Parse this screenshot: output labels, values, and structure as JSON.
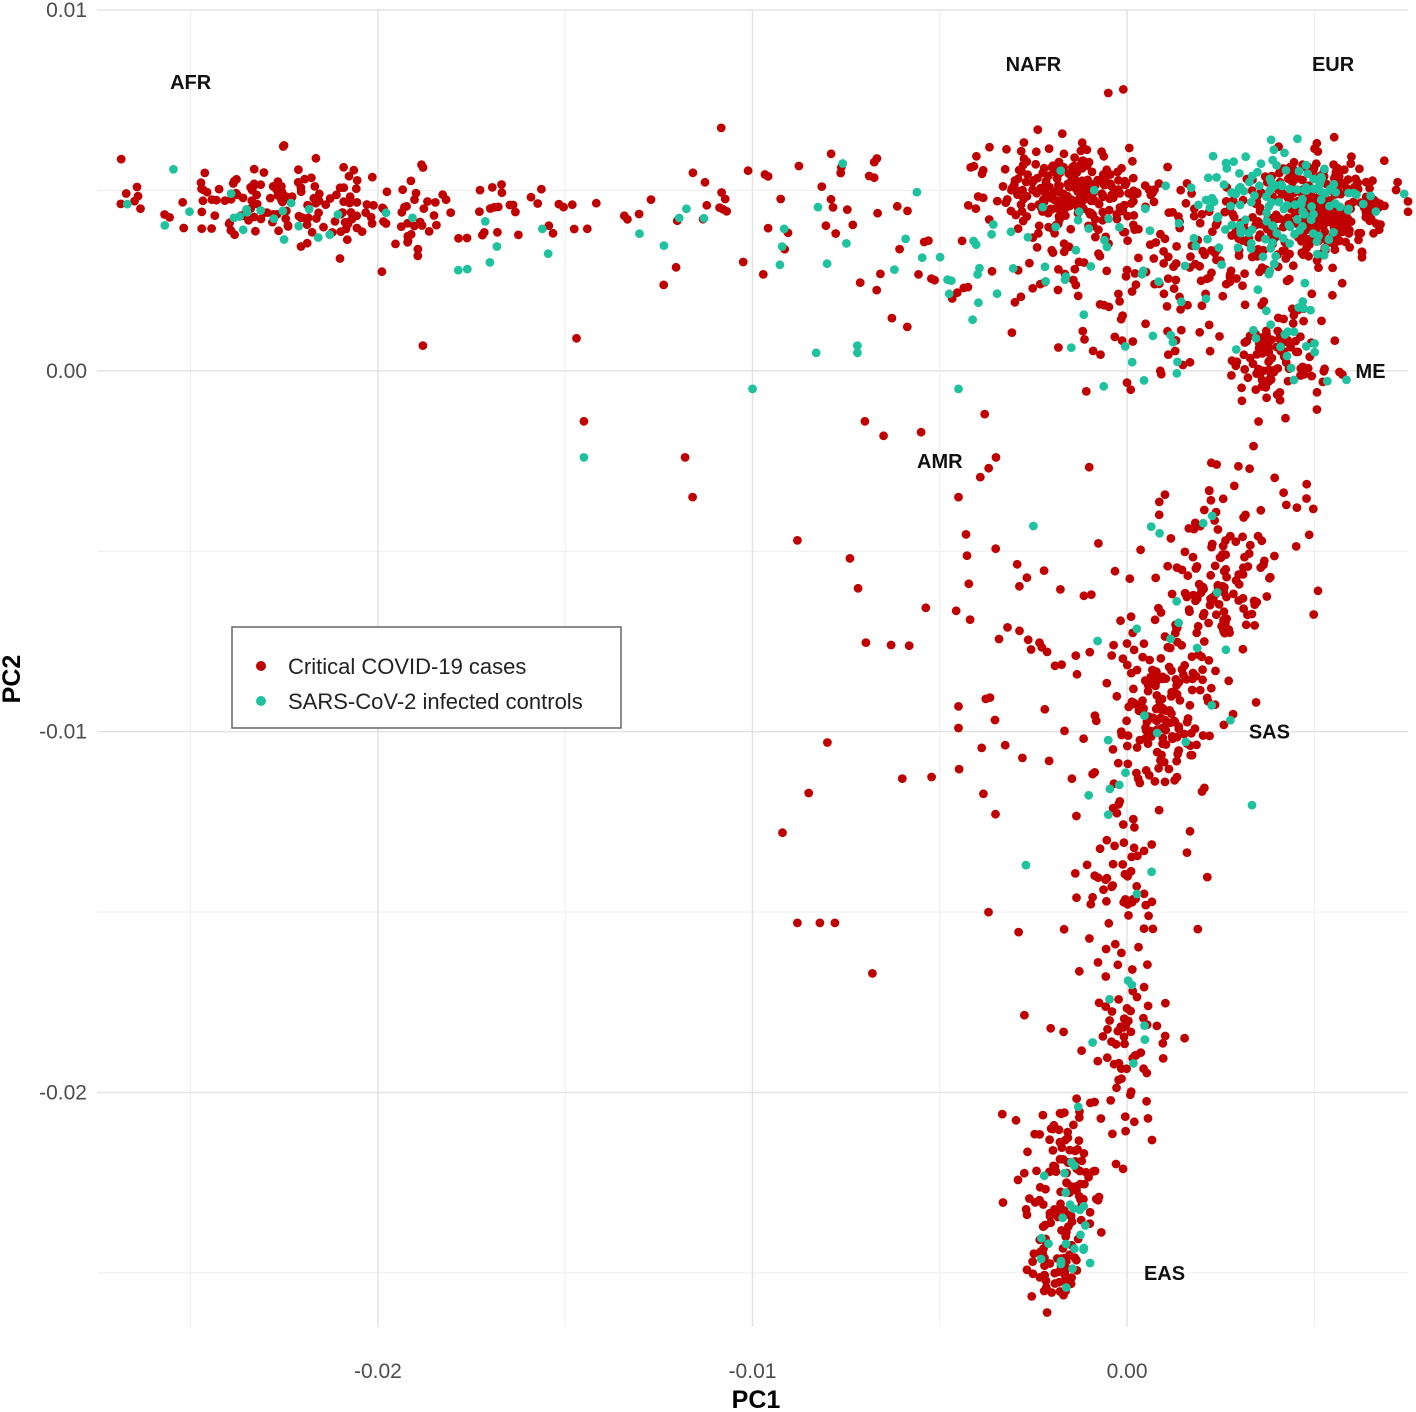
{
  "chart_data": {
    "type": "scatter",
    "title": "",
    "xlabel": "PC1",
    "ylabel": "PC2",
    "xlim": [
      -0.0275,
      0.0075
    ],
    "ylim": [
      -0.0265,
      0.01
    ],
    "x_ticks": [
      -0.02,
      -0.01,
      0.0
    ],
    "x_tick_labels": [
      "-0.02",
      "-0.01",
      "0.00"
    ],
    "y_ticks": [
      0.01,
      0.0,
      -0.01,
      -0.02
    ],
    "y_tick_labels": [
      "0.01",
      "0.00",
      "-0.01",
      "-0.02"
    ],
    "grid": true,
    "legend_position": "middle-left",
    "series": [
      {
        "name": "Critical COVID-19 cases",
        "color": "#c00000",
        "clusters": [
          {
            "cx": -0.0225,
            "cy": 0.0047,
            "sx": 0.0018,
            "sy": 0.0006,
            "n": 150
          },
          {
            "cx": -0.0185,
            "cy": 0.0043,
            "sx": 0.0012,
            "sy": 0.0006,
            "n": 40
          },
          {
            "cx": -0.0155,
            "cy": 0.0045,
            "sx": 0.001,
            "sy": 0.0006,
            "n": 12
          },
          {
            "cx": -0.0105,
            "cy": 0.0043,
            "sx": 0.0025,
            "sy": 0.0009,
            "n": 28
          },
          {
            "cx": -0.0075,
            "cy": 0.0045,
            "sx": 0.0015,
            "sy": 0.0008,
            "n": 20
          },
          {
            "cx": -0.0045,
            "cy": 0.003,
            "sx": 0.002,
            "sy": 0.0012,
            "n": 20
          },
          {
            "cx": -0.0012,
            "cy": 0.005,
            "sx": 0.0011,
            "sy": 0.0006,
            "n": 200
          },
          {
            "cx": -0.0022,
            "cy": 0.0053,
            "sx": 0.0008,
            "sy": 0.0005,
            "n": 40
          },
          {
            "cx": -0.0015,
            "cy": 0.0027,
            "sx": 0.0014,
            "sy": 0.001,
            "n": 50
          },
          {
            "cx": 0.0025,
            "cy": 0.0035,
            "sx": 0.0014,
            "sy": 0.0009,
            "n": 130
          },
          {
            "cx": 0.0052,
            "cy": 0.0045,
            "sx": 0.0009,
            "sy": 0.0007,
            "n": 280
          },
          {
            "cx": 0.004,
            "cy": 0.0003,
            "sx": 0.0006,
            "sy": 0.0006,
            "n": 90
          },
          {
            "cx": 0.0022,
            "cy": 0.0008,
            "sx": 0.0015,
            "sy": 0.0006,
            "n": 30
          },
          {
            "cx": 0.0028,
            "cy": -0.0045,
            "sx": 0.0011,
            "sy": 0.0018,
            "n": 60
          },
          {
            "cx": 0.0025,
            "cy": -0.006,
            "sx": 0.0006,
            "sy": 0.0008,
            "n": 80
          },
          {
            "cx": 0.001,
            "cy": -0.0095,
            "sx": 0.0007,
            "sy": 0.0012,
            "n": 150
          },
          {
            "cx": -0.001,
            "cy": -0.0085,
            "sx": 0.0018,
            "sy": 0.0018,
            "n": 60
          },
          {
            "cx": -0.004,
            "cy": -0.006,
            "sx": 0.002,
            "sy": 0.0025,
            "n": 18
          },
          {
            "cx": 0.0,
            "cy": -0.0145,
            "sx": 0.0007,
            "sy": 0.0012,
            "n": 70
          },
          {
            "cx": -0.0002,
            "cy": -0.019,
            "sx": 0.0007,
            "sy": 0.0012,
            "n": 60
          },
          {
            "cx": -0.0017,
            "cy": -0.0225,
            "sx": 0.0006,
            "sy": 0.0012,
            "n": 110
          },
          {
            "cx": -0.002,
            "cy": -0.025,
            "sx": 0.0004,
            "sy": 0.0005,
            "n": 40
          }
        ],
        "x": [
          -0.0265,
          -0.0188,
          -0.0147,
          -0.0145,
          -0.0118,
          -0.0116,
          -0.0088,
          -0.008,
          -0.0074,
          -0.007,
          -0.0065,
          -0.0063,
          -0.006,
          -0.0055,
          -0.0045,
          -0.0045,
          -0.0045,
          -0.0038,
          -0.0035,
          -0.0085,
          -0.0082,
          -0.0092,
          -0.0088,
          -0.0078,
          -0.0068,
          -0.0037,
          -0.0005,
          -0.0001
        ],
        "y": [
          0.0047,
          0.0007,
          0.0009,
          -0.0014,
          -0.0024,
          -0.0035,
          -0.0047,
          -0.0103,
          -0.0052,
          -0.0014,
          -0.0018,
          -0.0076,
          -0.0113,
          -0.0017,
          -0.0035,
          -0.0093,
          -0.0099,
          -0.0012,
          -0.0024,
          -0.0117,
          -0.0153,
          -0.0128,
          -0.0153,
          -0.0153,
          -0.0167,
          -0.015,
          0.0077,
          0.0078
        ]
      },
      {
        "name": "SARS-CoV-2 infected controls",
        "color": "#1fc29e",
        "clusters": [
          {
            "cx": -0.023,
            "cy": 0.0043,
            "sx": 0.002,
            "sy": 0.0007,
            "n": 20
          },
          {
            "cx": -0.0165,
            "cy": 0.0035,
            "sx": 0.002,
            "sy": 0.0008,
            "n": 10
          },
          {
            "cx": -0.009,
            "cy": 0.004,
            "sx": 0.0025,
            "sy": 0.001,
            "n": 14
          },
          {
            "cx": -0.004,
            "cy": 0.003,
            "sx": 0.002,
            "sy": 0.001,
            "n": 18
          },
          {
            "cx": -0.001,
            "cy": 0.0035,
            "sx": 0.0015,
            "sy": 0.001,
            "n": 25
          },
          {
            "cx": 0.004,
            "cy": 0.0045,
            "sx": 0.0013,
            "sy": 0.0009,
            "n": 140
          },
          {
            "cx": 0.004,
            "cy": 0.0008,
            "sx": 0.0007,
            "sy": 0.0009,
            "n": 25
          },
          {
            "cx": 0.0005,
            "cy": 0.0005,
            "sx": 0.0008,
            "sy": 0.0004,
            "n": 10
          },
          {
            "cx": 0.0015,
            "cy": -0.0085,
            "sx": 0.0012,
            "sy": 0.0025,
            "n": 20
          },
          {
            "cx": 0.0,
            "cy": -0.015,
            "sx": 0.0008,
            "sy": 0.003,
            "n": 12
          },
          {
            "cx": -0.0018,
            "cy": -0.0235,
            "sx": 0.0005,
            "sy": 0.0012,
            "n": 25
          }
        ],
        "x": [
          -0.0145,
          -0.01,
          -0.0083,
          -0.0072,
          -0.0072,
          -0.0045,
          -0.0025,
          -0.0027,
          -0.0005
        ],
        "y": [
          -0.0024,
          -0.0005,
          0.0005,
          0.0007,
          0.0005,
          -0.0005,
          -0.0043,
          -0.0137,
          -0.0123
        ]
      }
    ],
    "annotations": [
      {
        "text": "AFR",
        "x": -0.025,
        "y": 0.008
      },
      {
        "text": "NAFR",
        "x": -0.0025,
        "y": 0.0085
      },
      {
        "text": "EUR",
        "x": 0.0055,
        "y": 0.0085
      },
      {
        "text": "ME",
        "x": 0.0065,
        "y": 0.0
      },
      {
        "text": "AMR",
        "x": -0.005,
        "y": -0.0025
      },
      {
        "text": "SAS",
        "x": 0.0038,
        "y": -0.01
      },
      {
        "text": "EAS",
        "x": 0.001,
        "y": -0.025
      }
    ]
  }
}
